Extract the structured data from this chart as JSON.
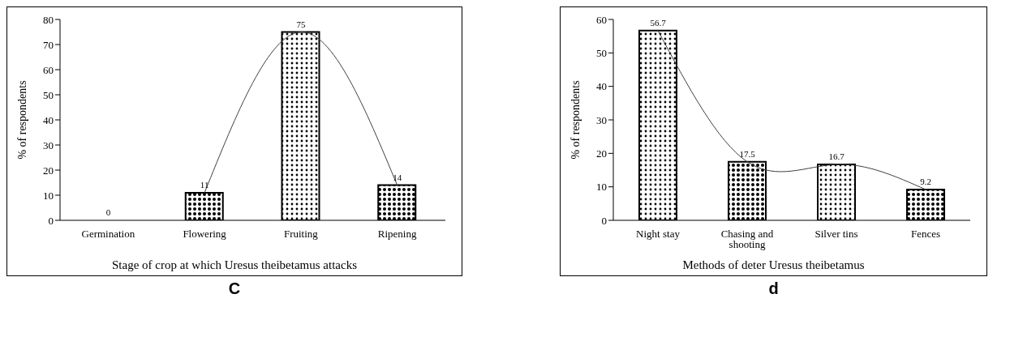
{
  "chart_data": [
    {
      "type": "bar",
      "title": "C",
      "xlabel": "Stage of crop at which Uresus theibetamus attacks",
      "ylabel": "% of respondents",
      "categories": [
        "Germination",
        "Flowering",
        "Fruiting",
        "Ripening"
      ],
      "ylim": [
        0,
        80
      ],
      "yticks": [
        0,
        10,
        20,
        30,
        40,
        50,
        60,
        70,
        80
      ],
      "grid": false,
      "legend": false,
      "series": [
        {
          "colors": [
            "#000000",
            "#000000",
            "#000000",
            "#000000"
          ],
          "values": [
            0,
            11,
            75,
            14
          ],
          "value_labels": [
            "0",
            "11",
            "75",
            "14"
          ]
        },
        {
          "type": "line",
          "color": "#404040",
          "values": [
            null,
            11,
            75,
            14
          ]
        }
      ]
    },
    {
      "type": "bar",
      "title": "d",
      "xlabel": "Methods of deter Uresus theibetamus",
      "ylabel": "% of respondents",
      "categories": [
        "Night stay",
        "Chasing and shooting",
        "Silver tins",
        "Fences"
      ],
      "ylim": [
        0,
        60
      ],
      "yticks": [
        0,
        10,
        20,
        30,
        40,
        50,
        60
      ],
      "grid": false,
      "legend": false,
      "series": [
        {
          "colors": [
            "#000000",
            "#000000",
            "#000000",
            "#000000"
          ],
          "values": [
            56.7,
            17.5,
            16.7,
            9.2
          ],
          "value_labels": [
            "56.7",
            "17.5",
            "16.7",
            "9.2"
          ]
        },
        {
          "type": "line",
          "color": "#404040",
          "values": [
            56.7,
            17.5,
            16.7,
            9.2
          ]
        }
      ]
    }
  ]
}
